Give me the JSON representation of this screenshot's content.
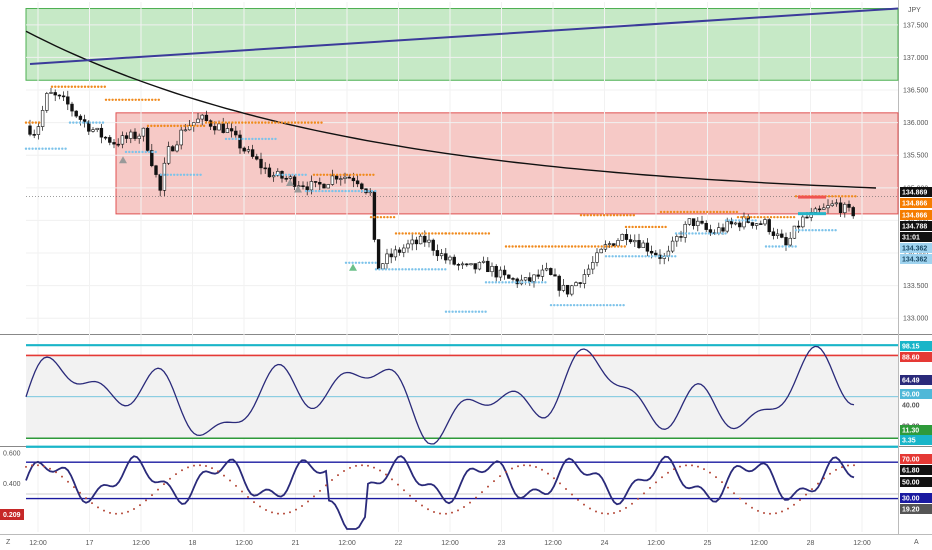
{
  "chart_data": [
    {
      "type": "candlestick",
      "title": "",
      "currency_label": "JPY",
      "x_tick_labels": [
        "12:00",
        "17",
        "12:00",
        "18",
        "12:00",
        "21",
        "12:00",
        "22",
        "12:00",
        "23",
        "12:00",
        "24",
        "12:00",
        "25",
        "12:00",
        "28",
        "12:00"
      ],
      "y_ticks": [
        "137.500",
        "137.000",
        "136.500",
        "136.000",
        "135.500",
        "135.000",
        "134.500",
        "134.000",
        "133.500",
        "133.000"
      ],
      "ylim": [
        132.85,
        137.85
      ],
      "close": 134.869,
      "zones": [
        {
          "name": "supply-zone-green",
          "from": 136.65,
          "to": 137.75,
          "color": "#c6e9c6"
        },
        {
          "name": "range-zone-red",
          "from": 134.6,
          "to": 136.15,
          "color": "#f6c9c6"
        }
      ],
      "price_tags": [
        {
          "value": "134.869",
          "color": "#111111",
          "text_color": "#ffffff"
        },
        {
          "value": "134.866",
          "color": "#f57c00",
          "text_color": "#ffffff"
        },
        {
          "value": "134.866",
          "color": "#f57c00",
          "text_color": "#ffffff"
        },
        {
          "value": "134.788",
          "color": "#111111",
          "text_color": "#ffffff"
        },
        {
          "value": "31:01",
          "color": "#111111",
          "text_color": "#ffffff"
        },
        {
          "value": "134.362",
          "color": "#9fd3ef",
          "text_color": "#1a4a66"
        },
        {
          "value": "134.362",
          "color": "#9fd3ef",
          "text_color": "#1a4a66"
        }
      ]
    },
    {
      "type": "line",
      "name": "stochastic-rsi",
      "ylim": [
        5,
        103
      ],
      "levels": [
        {
          "value": "98.15",
          "color": "#19b5c8",
          "text_color": "#ffffff"
        },
        {
          "value": "88.60",
          "color": "#e53935",
          "text_color": "#ffffff"
        },
        {
          "value": "64.49",
          "color": "#2a2a7a",
          "text_color": "#ffffff"
        },
        {
          "value": "50.00",
          "color": "#4fb8d8",
          "text_color": "#ffffff"
        },
        {
          "value": "40.00",
          "color": "",
          "text_color": "#555555"
        },
        {
          "value": "20.00",
          "color": "",
          "text_color": "#555555"
        },
        {
          "value": "11.30",
          "color": "#2e9a3a",
          "text_color": "#ffffff"
        },
        {
          "value": "3.35",
          "color": "#19b5c8",
          "text_color": "#ffffff"
        }
      ]
    },
    {
      "type": "line",
      "name": "oscillator",
      "y_ticks": [
        "0.600",
        "0.400",
        "0.200"
      ],
      "ylim": [
        0.08,
        0.62
      ],
      "left_badge": "0.209",
      "levels": [
        {
          "value": "70.00",
          "color": "#e53935",
          "text_color": "#ffffff"
        },
        {
          "value": "61.80",
          "color": "#111111",
          "text_color": "#ffffff"
        },
        {
          "value": "50.00",
          "color": "#111111",
          "text_color": "#ffffff"
        },
        {
          "value": "30.00",
          "color": "#1a1aa0",
          "text_color": "#ffffff"
        },
        {
          "value": "19.20",
          "color": "#555555",
          "text_color": "#ffffff"
        }
      ]
    }
  ],
  "corner_labels": {
    "left": "Z",
    "right": "A"
  }
}
